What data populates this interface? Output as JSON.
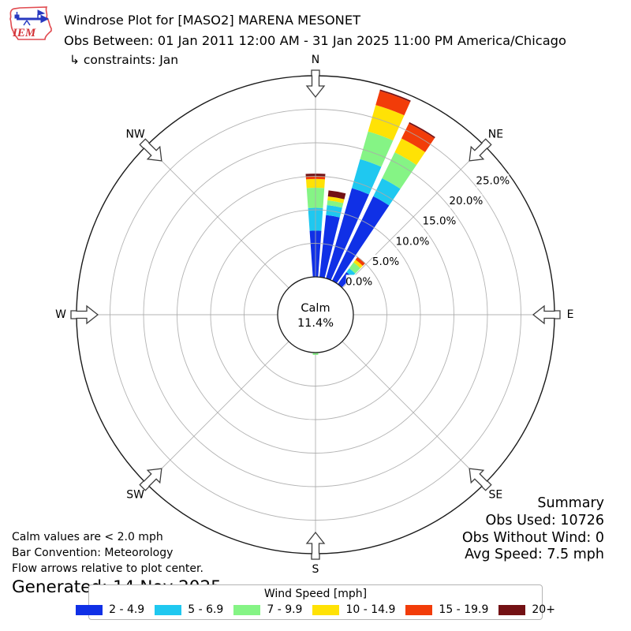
{
  "header": {
    "title": "Windrose Plot for [MASO2] MARENA MESONET",
    "subtitle": "Obs Between: 01 Jan 2011 12:00 AM - 31 Jan 2025 11:00 PM America/Chicago",
    "constraints": "↳ constraints: Jan",
    "logo_text": "IEM"
  },
  "calm": {
    "label": "Calm",
    "value": "11.4%"
  },
  "notes": {
    "line1": "Calm values are < 2.0 mph",
    "line2": "Bar Convention: Meteorology",
    "line3": "Flow arrows relative to plot center.",
    "generated": "Generated: 14 Nov 2025"
  },
  "summary": {
    "title": "Summary",
    "obs_used": "Obs Used: 10726",
    "obs_without_wind": "Obs Without Wind: 0",
    "avg_speed": "Avg Speed: 7.5 mph"
  },
  "legend": {
    "title": "Wind Speed [mph]"
  },
  "chart_data": {
    "type": "bar",
    "subtype": "windrose-stacked-polar-bar",
    "units": "percent frequency of wind direction by speed bin",
    "speed_bins_mph": [
      "2 - 4.9",
      "5 - 6.9",
      "7 - 9.9",
      "10 - 14.9",
      "15 - 19.9",
      "20+"
    ],
    "colors": [
      "#1030e6",
      "#1fc8f0",
      "#85f485",
      "#ffe205",
      "#f23c09",
      "#731114"
    ],
    "petal_width_deg": 8,
    "rings_pct": [
      0,
      5,
      10,
      15,
      20,
      25
    ],
    "ring_labels": [
      "0.0%",
      "5.0%",
      "10.0%",
      "15.0%",
      "20.0%",
      "25.0%"
    ],
    "outer_ring_pct": 30,
    "ring_label_azimuth_deg": 53,
    "compass_points": [
      {
        "label": "N",
        "azimuth_deg": 0
      },
      {
        "label": "NE",
        "azimuth_deg": 45
      },
      {
        "label": "E",
        "azimuth_deg": 90
      },
      {
        "label": "SE",
        "azimuth_deg": 135
      },
      {
        "label": "S",
        "azimuth_deg": 180
      },
      {
        "label": "SW",
        "azimuth_deg": 225
      },
      {
        "label": "W",
        "azimuth_deg": 270
      },
      {
        "label": "NW",
        "azimuth_deg": 315
      }
    ],
    "petals": [
      {
        "azimuth_deg": 0,
        "values_pct": [
          6.9,
          3.4,
          3.0,
          1.3,
          0.4,
          0.4
        ]
      },
      {
        "azimuth_deg": 10,
        "values_pct": [
          9.3,
          1.5,
          0.7,
          0.6,
          0.0,
          0.9
        ]
      },
      {
        "azimuth_deg": 20,
        "values_pct": [
          14.0,
          4.5,
          4.3,
          4.1,
          2.2,
          0.2
        ]
      },
      {
        "azimuth_deg": 30,
        "values_pct": [
          14.0,
          3.0,
          4.3,
          2.3,
          2.5,
          0.2
        ]
      },
      {
        "azimuth_deg": 40,
        "values_pct": [
          2.2,
          0.7,
          1.1,
          0.5,
          0.55,
          0.0
        ]
      },
      {
        "azimuth_deg": 180,
        "values_pct": [
          0.0,
          0.0,
          0.35,
          0.0,
          0.0,
          0.0
        ]
      }
    ]
  }
}
